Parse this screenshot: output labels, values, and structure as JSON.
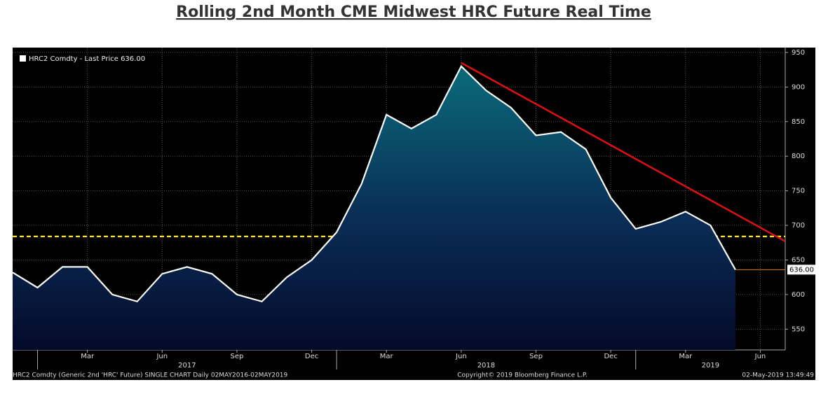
{
  "chart_data": {
    "type": "line",
    "title": "Rolling 2nd Month CME Midwest HRC Future Real Time",
    "x": [
      "2016-12",
      "2017-01",
      "2017-02",
      "2017-03",
      "2017-04",
      "2017-05",
      "2017-06",
      "2017-07",
      "2017-08",
      "2017-09",
      "2017-10",
      "2017-11",
      "2017-12",
      "2018-01",
      "2018-02",
      "2018-03",
      "2018-04",
      "2018-05",
      "2018-06",
      "2018-07",
      "2018-08",
      "2018-09",
      "2018-10",
      "2018-11",
      "2018-12",
      "2019-01",
      "2019-02",
      "2019-03",
      "2019-04",
      "2019-05"
    ],
    "series": [
      {
        "name": "HRC2 Comdty - Last Price 636.00",
        "color": "#ffffff",
        "values": [
          632,
          610,
          640,
          640,
          600,
          590,
          630,
          640,
          630,
          600,
          590,
          625,
          650,
          690,
          760,
          860,
          840,
          860,
          930,
          895,
          870,
          830,
          835,
          810,
          740,
          695,
          705,
          720,
          700,
          636
        ],
        "value_labels": [
          null,
          null,
          null,
          null,
          null,
          null,
          null,
          null,
          null,
          null,
          null,
          null,
          null,
          null,
          null,
          null,
          null,
          null,
          null,
          null,
          null,
          null,
          null,
          null,
          null,
          null,
          null,
          null,
          null,
          "636.00"
        ]
      }
    ],
    "xlim": [
      "2016-12",
      "2019-07"
    ],
    "xticks": [
      {
        "value": "2017-03",
        "label": "Mar"
      },
      {
        "value": "2017-06",
        "label": "Jun"
      },
      {
        "value": "2017-09",
        "label": "Sep"
      },
      {
        "value": "2017-12",
        "label": "Dec"
      },
      {
        "value": "2018-03",
        "label": "Mar"
      },
      {
        "value": "2018-06",
        "label": "Jun"
      },
      {
        "value": "2018-09",
        "label": "Sep"
      },
      {
        "value": "2018-12",
        "label": "Dec"
      },
      {
        "value": "2019-03",
        "label": "Mar"
      },
      {
        "value": "2019-06",
        "label": "Jun"
      }
    ],
    "year_labels": [
      "2017",
      "2018",
      "2019"
    ],
    "ylim": [
      520,
      957
    ],
    "yticks": [
      550,
      600,
      650,
      700,
      750,
      800,
      850,
      900,
      950
    ],
    "grid": true,
    "reference_line": {
      "value": 684,
      "color": "#ffea00"
    },
    "trend_line": {
      "x": [
        "2018-06",
        "2019-07"
      ],
      "values": [
        935,
        677
      ],
      "color": "#e01010"
    },
    "footer": {
      "left": "HRC2 Comdty (Generic 2nd 'HRC' Future) SINGLE CHART  Daily 02MAY2016-02MAY2019",
      "center": "Copyright© 2019 Bloomberg Finance L.P.",
      "right": "02-May-2019 13:49:49"
    }
  }
}
